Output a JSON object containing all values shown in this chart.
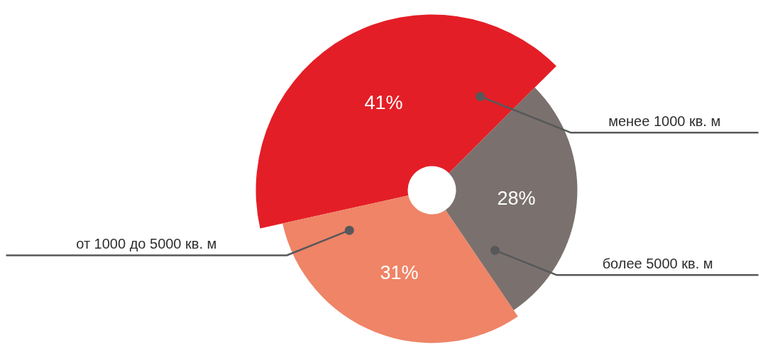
{
  "chart_data": {
    "type": "donut",
    "categories": [
      "менее 1000 кв. м",
      "более 5000 кв. м",
      "от 1000 до 5000 кв. м"
    ],
    "values": [
      41,
      28,
      31
    ],
    "colors": [
      "#e41e26",
      "#7a716e",
      "#ef8467"
    ],
    "value_labels": [
      "41%",
      "28%",
      "31%"
    ]
  }
}
